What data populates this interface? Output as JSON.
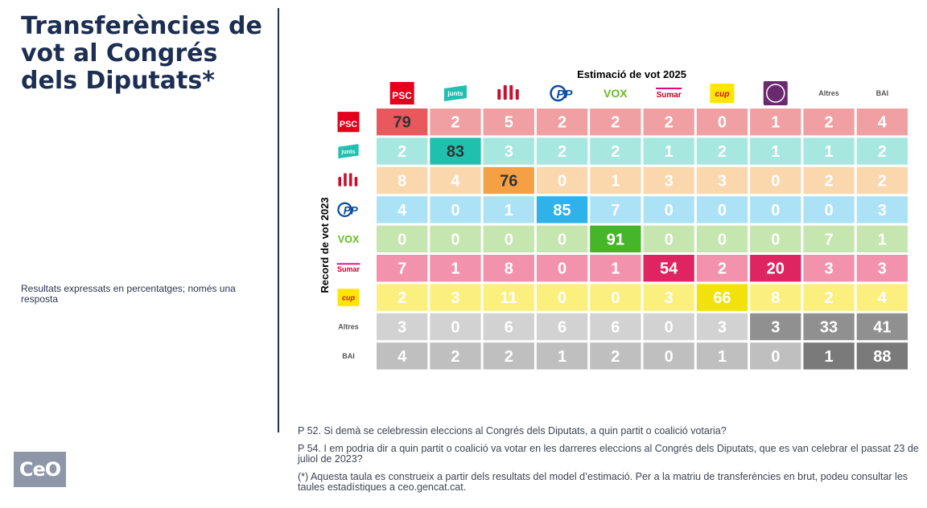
{
  "title": "Transferències de vot al Congrés dels Diputats*",
  "subtitle": "Resultats expressats en percentatges; només una resposta",
  "logo_text": "CeO",
  "footnotes": [
    "P 52. Si demà se celebressin eleccions al Congrés dels Diputats, a quin partit o coalició votaria?",
    "P 54. I em podria dir a quin partit o coalició va votar en les darreres eleccions al Congrés dels Diputats, que es van celebrar el passat 23 de juliol de 2023?",
    "(*) Aquesta taula es construeix a partir dels resultats del model d’estimació. Per a la matriu de transferències en brut, podeu consultar les taules estadístiques a ceo.gencat.cat."
  ],
  "chart_data": {
    "type": "heatmap",
    "xlabel": "Estimació de vot 2025",
    "ylabel": "Record de vot 2023",
    "columns": [
      "PSC",
      "junts",
      "ERC",
      "PP",
      "VOX",
      "Sumar",
      "cup",
      "Podem",
      "Altres",
      "BAI"
    ],
    "rows": [
      "PSC",
      "junts",
      "ERC",
      "PP",
      "VOX",
      "Sumar",
      "cup",
      "Altres",
      "BAI"
    ],
    "values": [
      [
        79,
        2,
        5,
        2,
        2,
        2,
        0,
        1,
        2,
        4
      ],
      [
        2,
        83,
        3,
        2,
        2,
        1,
        2,
        1,
        1,
        2
      ],
      [
        8,
        4,
        76,
        0,
        1,
        3,
        3,
        0,
        2,
        2
      ],
      [
        4,
        0,
        1,
        85,
        7,
        0,
        0,
        0,
        0,
        3
      ],
      [
        0,
        0,
        0,
        0,
        91,
        0,
        0,
        0,
        7,
        1
      ],
      [
        7,
        1,
        8,
        0,
        1,
        54,
        2,
        20,
        3,
        3
      ],
      [
        2,
        3,
        11,
        0,
        0,
        3,
        66,
        8,
        2,
        4
      ],
      [
        3,
        0,
        6,
        6,
        6,
        0,
        3,
        3,
        33,
        41
      ],
      [
        4,
        2,
        2,
        1,
        2,
        0,
        1,
        0,
        1,
        88
      ]
    ],
    "row_colors": {
      "light": [
        "#f0a0a2",
        "#a6e7df",
        "#fbd7ad",
        "#ace2f6",
        "#c5e6ae",
        "#f292ad",
        "#fbf07e",
        "#d2d2d2",
        "#bfbfbf"
      ],
      "dark": [
        "#e8585c",
        "#1fc0ad",
        "#f5a043",
        "#2fb1ea",
        "#47b52a",
        "#de2561",
        "#f2e20a",
        "#909090",
        "#7a7a7a"
      ]
    },
    "party_colors": {
      "PSC": "#e2001a",
      "junts": "#20c0b0",
      "ERC": "#c8102e",
      "PP": "#0a4da2",
      "VOX": "#63be21",
      "Sumar": "#e5007d",
      "cup": "#ffe500",
      "Podem": "#6a2a6e"
    }
  }
}
